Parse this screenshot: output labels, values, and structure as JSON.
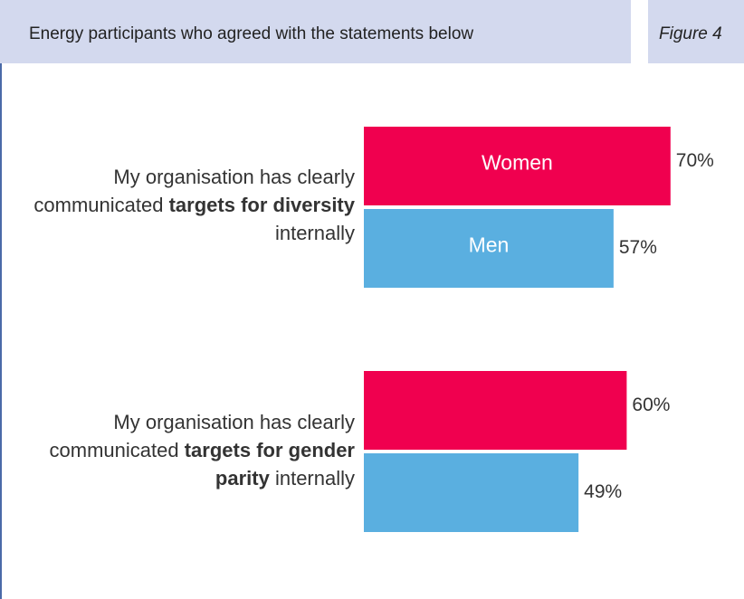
{
  "chart_data": {
    "type": "hbar",
    "title": "Energy participants who agreed with the statements below",
    "figure_label": "Figure 4",
    "categories": [
      [
        {
          "text": "My organisation has clearly communicated ",
          "bold": false
        },
        {
          "text": "targets for diversity",
          "bold": true
        },
        {
          "text": " internally",
          "bold": false
        }
      ],
      [
        {
          "text": "My organisation has clearly communicated ",
          "bold": false
        },
        {
          "text": "targets for gender parity",
          "bold": true
        },
        {
          "text": " internally",
          "bold": false
        }
      ]
    ],
    "series": [
      {
        "name": "Women",
        "color": "#f0004f",
        "values": [
          70,
          60
        ],
        "value_labels": [
          "70%",
          "60%"
        ]
      },
      {
        "name": "Men",
        "color": "#5aafe0",
        "values": [
          57,
          49
        ],
        "value_labels": [
          "57%",
          "49%"
        ]
      }
    ],
    "xlim": [
      0,
      100
    ]
  }
}
